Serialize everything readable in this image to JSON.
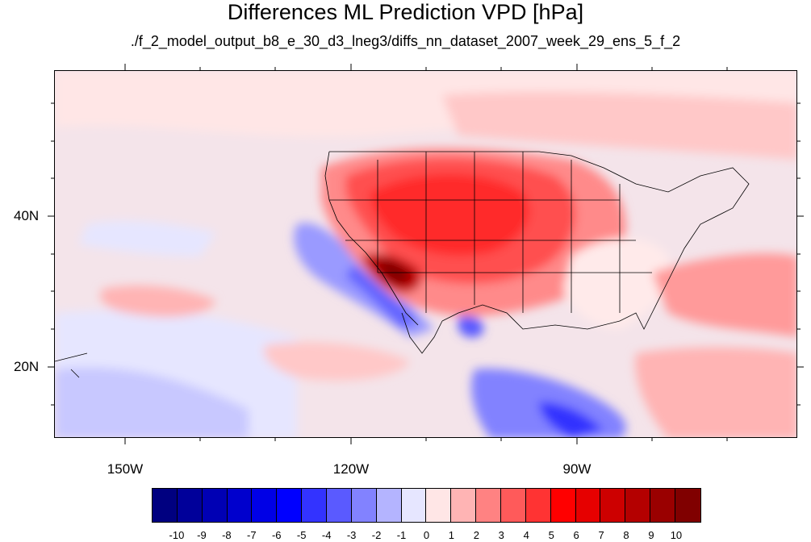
{
  "title": "Differences ML Prediction VPD [hPa]",
  "subtitle": "./f_2_model_output_b8_e_30_d3_lneg3/diffs_nn_dataset_2007_week_29_ens_5_f_2",
  "map": {
    "lat_labels": [
      {
        "text": "40N",
        "lat": 40
      },
      {
        "text": "20N",
        "lat": 20
      }
    ],
    "lon_labels": [
      {
        "text": "150W",
        "lon": -150
      },
      {
        "text": "120W",
        "lon": -120
      },
      {
        "text": "90W",
        "lon": -90
      }
    ]
  },
  "colorbar": {
    "colors": [
      "#000080",
      "#00009a",
      "#0000b4",
      "#0000cd",
      "#0000e6",
      "#0000ff",
      "#3333ff",
      "#5a5aff",
      "#8282ff",
      "#b4b4ff",
      "#e6e6ff",
      "#ffe6e6",
      "#ffb4b4",
      "#ff8282",
      "#ff5a5a",
      "#ff3333",
      "#ff0000",
      "#e60000",
      "#cd0000",
      "#b40000",
      "#9a0000",
      "#800000"
    ],
    "labels": [
      "-10",
      "-9",
      "-8",
      "-7",
      "-6",
      "-5",
      "-4",
      "-3",
      "-2",
      "-1",
      "0",
      "1",
      "2",
      "3",
      "4",
      "5",
      "6",
      "7",
      "8",
      "9",
      "10"
    ]
  }
}
